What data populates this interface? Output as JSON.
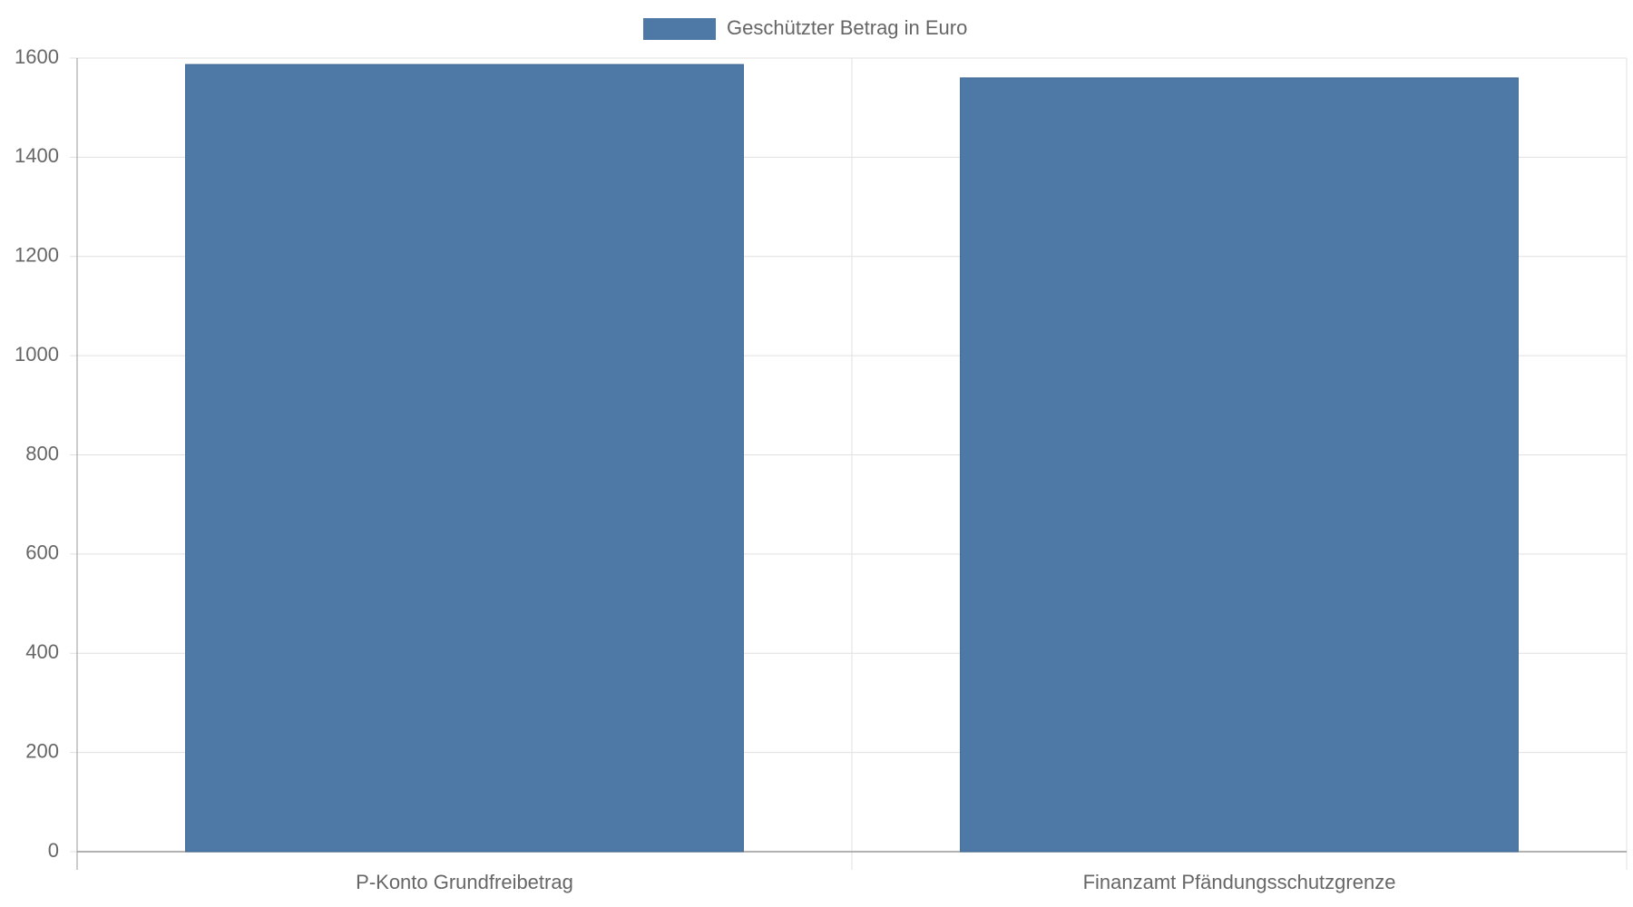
{
  "chart_data": {
    "type": "bar",
    "categories": [
      "P-Konto Grundfreibetrag",
      "Finanzamt Pfändungsschutzgrenze"
    ],
    "series": [
      {
        "name": "Geschützter Betrag in Euro",
        "color": "#4e79a7",
        "values": [
          1587,
          1560
        ]
      }
    ],
    "ylim": [
      0,
      1600
    ],
    "yticks": [
      0,
      200,
      400,
      600,
      800,
      1000,
      1200,
      1400,
      1600
    ],
    "grid": true,
    "legend": "top"
  }
}
